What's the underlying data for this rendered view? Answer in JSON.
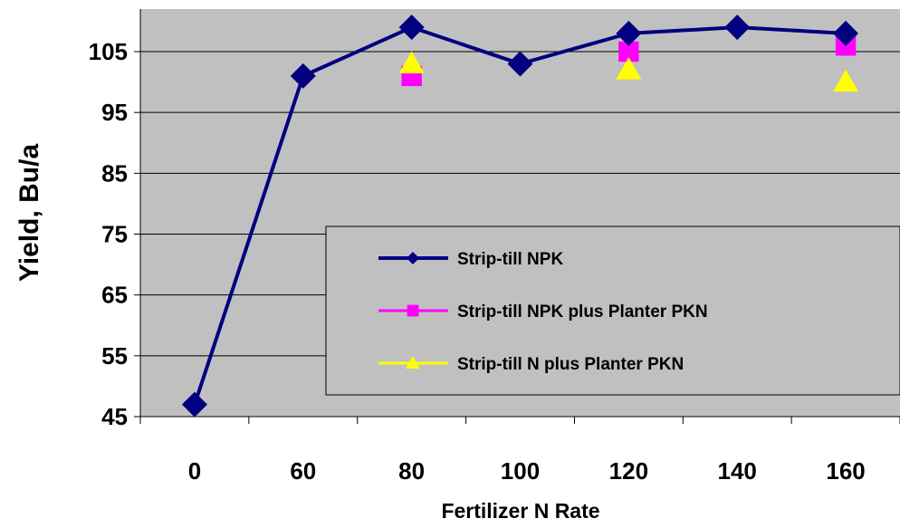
{
  "chart_data": {
    "type": "line",
    "title": "",
    "xlabel": "Fertilizer N Rate",
    "ylabel": "Yield, Bu/a",
    "categories": [
      "0",
      "60",
      "80",
      "100",
      "120",
      "140",
      "160"
    ],
    "yticks": [
      "45",
      "55",
      "65",
      "75",
      "85",
      "95",
      "105"
    ],
    "ylim": [
      45,
      112
    ],
    "grid": true,
    "legend_position": "bottom-right",
    "series": [
      {
        "name": "Strip-till NPK",
        "marker": "diamond",
        "color": "#000080",
        "line": true,
        "values": [
          47,
          101,
          109,
          103,
          108,
          109,
          108
        ]
      },
      {
        "name": "Strip-till NPK plus Planter PKN",
        "marker": "square",
        "color": "#ff00ff",
        "line": false,
        "values": [
          null,
          null,
          101,
          null,
          105,
          null,
          106
        ]
      },
      {
        "name": "Strip-till N plus Planter PKN",
        "marker": "triangle",
        "color": "#ffff00",
        "line": false,
        "values": [
          null,
          null,
          103,
          null,
          102,
          null,
          100
        ]
      }
    ],
    "colors": {
      "plot_background": "#c0c0c0",
      "gridline": "#000000"
    }
  }
}
